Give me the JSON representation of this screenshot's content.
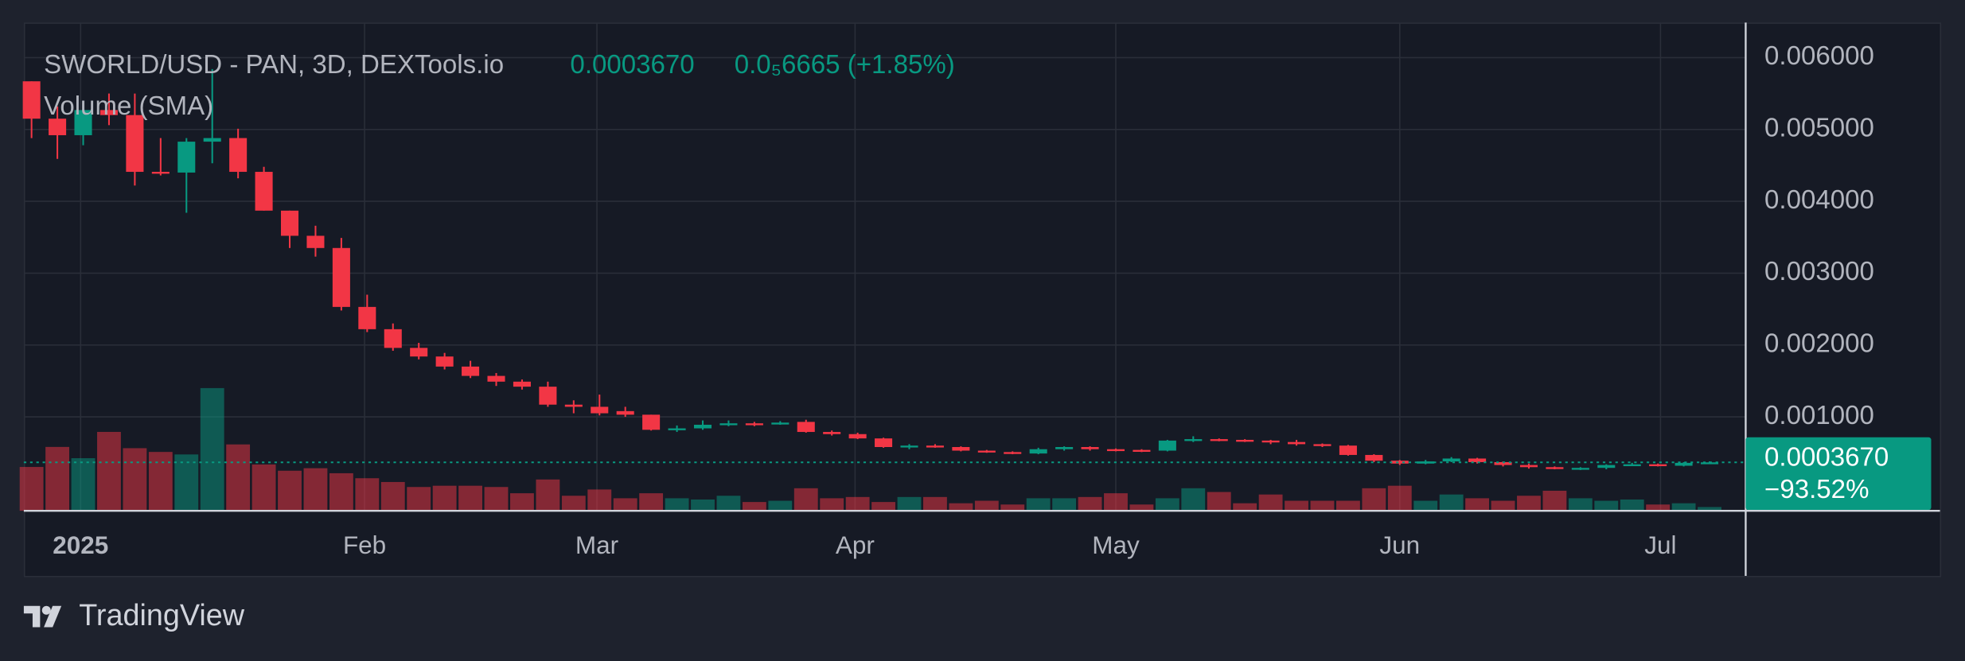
{
  "chart_data": {
    "type": "candlestick",
    "title": "SWORLD/USD - PAN, 3D, DEXTools.io",
    "last_price": {
      "value": 0.000367,
      "label": "0.0003670"
    },
    "change": "0.0₅6665 (+1.85%)",
    "volume_title": "Volume (SMA)",
    "change_total": "−93.52%",
    "up_color": "#089981",
    "down_color": "#f23645",
    "grid": true,
    "xlim": [
      -0.3,
      66.4
    ],
    "xticks": [
      {
        "value": 1.9,
        "label": "2025"
      },
      {
        "value": 12.9,
        "label": "Feb"
      },
      {
        "value": 21.9,
        "label": "Mar"
      },
      {
        "value": 31.9,
        "label": "Apr"
      },
      {
        "value": 42,
        "label": "May"
      },
      {
        "value": 53,
        "label": "Jun"
      },
      {
        "value": 63.1,
        "label": "Jul"
      }
    ],
    "ylim": [
      -0.000307,
      0.006488
    ],
    "yticks": [
      {
        "value": 0.001,
        "label": "0.001000"
      },
      {
        "value": 0.002,
        "label": "0.002000"
      },
      {
        "value": 0.003,
        "label": "0.003000"
      },
      {
        "value": 0.004,
        "label": "0.004000"
      },
      {
        "value": 0.005,
        "label": "0.005000"
      },
      {
        "value": 0.006,
        "label": "0.006000"
      }
    ],
    "open": [
      0.00567,
      0.00515,
      0.00492,
      0.00527,
      0.0052,
      0.00441,
      0.0044,
      0.00483,
      0.00488,
      0.00441,
      0.00387,
      0.00352,
      0.00335,
      0.00253,
      0.00222,
      0.00196,
      0.00184,
      0.0017,
      0.00157,
      0.00149,
      0.00142,
      0.00117,
      0.00114,
      0.00108,
      0.00103,
      0.00082,
      0.00084,
      0.00089,
      0.00091,
      0.00091,
      0.00093,
      0.00079,
      0.00076,
      0.0007,
      0.00058,
      0.0006,
      0.00058,
      0.00053,
      0.00051,
      0.00049,
      0.00055,
      0.00058,
      0.00055,
      0.00054,
      0.00053,
      0.00067,
      0.00069,
      0.00068,
      0.00067,
      0.00065,
      0.00062,
      0.0006,
      0.00047,
      0.00039,
      0.00035,
      0.00038,
      0.00042,
      0.00037,
      0.00033,
      0.0003,
      0.00029,
      0.00029,
      0.00033,
      0.00034,
      0.00032,
      0.00036
    ],
    "high": [
      0.00567,
      0.00532,
      0.00535,
      0.0055,
      0.0055,
      0.00488,
      0.00488,
      0.00584,
      0.00501,
      0.00448,
      0.00387,
      0.00366,
      0.00349,
      0.0027,
      0.0023,
      0.00203,
      0.00189,
      0.00178,
      0.00161,
      0.00152,
      0.00149,
      0.00123,
      0.00131,
      0.00114,
      0.00103,
      0.00088,
      0.00095,
      0.00095,
      0.00093,
      0.00094,
      0.00096,
      0.00081,
      0.00078,
      0.00071,
      0.00062,
      0.00062,
      0.00059,
      0.00054,
      0.00052,
      0.00057,
      0.00059,
      0.00059,
      0.00056,
      0.00055,
      0.00068,
      0.00073,
      0.0007,
      0.00069,
      0.00068,
      0.00068,
      0.00063,
      0.00061,
      0.00048,
      0.0004,
      0.0004,
      0.00044,
      0.00043,
      0.00038,
      0.00035,
      0.00031,
      0.0003,
      0.00034,
      0.00036,
      0.00035,
      0.00037,
      0.00038
    ],
    "low": [
      0.00488,
      0.00459,
      0.00478,
      0.00506,
      0.00422,
      0.00436,
      0.00384,
      0.00453,
      0.00432,
      0.00387,
      0.00335,
      0.00323,
      0.00248,
      0.00218,
      0.00192,
      0.0018,
      0.00166,
      0.00154,
      0.00143,
      0.00138,
      0.00114,
      0.00105,
      0.00102,
      0.001,
      0.00081,
      0.00079,
      0.00082,
      0.00087,
      0.00087,
      0.00089,
      0.00078,
      0.00074,
      0.00069,
      0.00057,
      0.00055,
      0.00057,
      0.00052,
      0.0005,
      0.00048,
      0.00048,
      0.00053,
      0.00053,
      0.00052,
      0.00051,
      0.00052,
      0.00065,
      0.00066,
      0.00065,
      0.00062,
      0.0006,
      0.00058,
      0.00046,
      0.00037,
      0.00033,
      0.00034,
      0.00037,
      0.00035,
      0.00031,
      0.00028,
      0.00027,
      0.00026,
      0.00027,
      0.00032,
      0.00031,
      0.00031,
      0.00035
    ],
    "close": [
      0.00515,
      0.00492,
      0.00527,
      0.0052,
      0.00441,
      0.0044,
      0.00483,
      0.00488,
      0.00441,
      0.00387,
      0.00352,
      0.00335,
      0.00253,
      0.00222,
      0.00196,
      0.00184,
      0.0017,
      0.00157,
      0.00149,
      0.00142,
      0.00117,
      0.00114,
      0.00105,
      0.00103,
      0.00082,
      0.00084,
      0.00089,
      0.00091,
      0.00089,
      0.00092,
      0.00079,
      0.00076,
      0.0007,
      0.00058,
      0.0006,
      0.00058,
      0.00053,
      0.00051,
      0.00049,
      0.00055,
      0.00058,
      0.00055,
      0.00054,
      0.00053,
      0.00067,
      0.00069,
      0.00068,
      0.00067,
      0.00065,
      0.00062,
      0.0006,
      0.00047,
      0.00039,
      0.00035,
      0.00038,
      0.00042,
      0.00037,
      0.00033,
      0.0003,
      0.00029,
      0.00029,
      0.00033,
      0.00034,
      0.00032,
      0.00036,
      0.000367
    ],
    "volume": [
      35,
      51,
      42,
      63,
      50,
      47,
      45,
      98,
      53,
      37,
      32,
      34,
      30,
      26,
      23,
      19,
      20,
      20,
      19,
      14,
      25,
      12,
      17,
      10,
      14,
      10,
      9,
      12,
      7,
      8,
      18,
      10,
      11,
      7,
      11,
      11,
      6,
      8,
      5,
      10,
      10,
      11,
      14,
      5,
      10,
      18,
      15,
      6,
      13,
      8,
      8,
      8,
      18,
      20,
      8,
      13,
      10,
      8,
      12,
      16,
      10,
      8,
      9,
      5,
      6,
      3
    ]
  },
  "brand": "TradingView"
}
